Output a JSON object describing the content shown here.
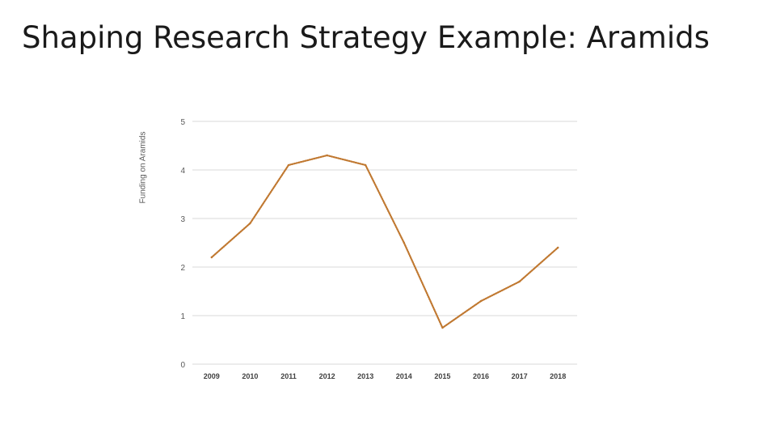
{
  "slide": {
    "title": "Shaping Research Strategy Example: Aramids"
  },
  "chart_data": {
    "type": "line",
    "title": "",
    "xlabel": "",
    "ylabel": "Funding on Aramids",
    "categories": [
      "2009",
      "2010",
      "2011",
      "2012",
      "2013",
      "2014",
      "2015",
      "2016",
      "2017",
      "2018"
    ],
    "series": [
      {
        "values": [
          2.2,
          2.9,
          4.1,
          4.3,
          4.1,
          2.5,
          0.75,
          1.3,
          1.7,
          2.4
        ],
        "color": "#c07830",
        "line_style": "dotted"
      }
    ],
    "ylim": [
      0,
      5
    ],
    "yticks": [
      0,
      1,
      2,
      3,
      4,
      5
    ],
    "grid": true,
    "legend": "none"
  }
}
